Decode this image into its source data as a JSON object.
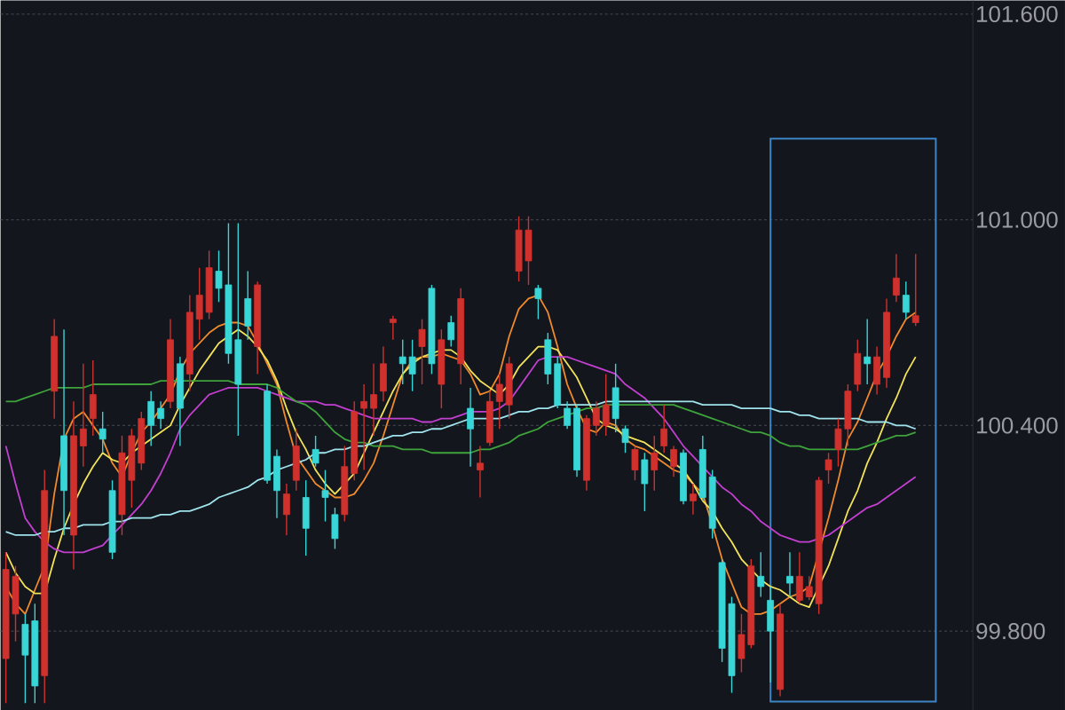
{
  "chart_data": {
    "type": "candlestick",
    "categories": [
      null,
      null,
      null,
      null,
      null,
      null,
      null,
      null,
      null,
      null,
      null,
      null,
      null,
      null,
      null,
      null,
      null,
      null,
      null,
      null,
      null,
      null,
      null,
      null,
      null,
      null,
      null,
      null,
      null,
      null,
      null,
      null,
      null,
      null,
      null,
      null,
      null,
      null,
      null,
      null,
      null,
      null,
      null,
      null,
      null,
      null,
      null,
      null,
      null,
      null,
      null,
      null,
      null,
      null,
      null,
      null,
      null,
      null,
      null,
      null,
      null,
      null,
      null,
      null,
      null,
      null,
      null,
      null,
      null,
      null,
      null,
      null,
      null,
      null,
      null,
      null,
      null,
      null,
      null,
      null,
      null,
      null,
      null,
      null,
      null,
      null,
      null,
      null,
      null,
      null,
      null,
      null,
      null,
      null,
      null
    ],
    "ohlc": [
      [
        99.72,
        100.03,
        99.59,
        99.98
      ],
      [
        99.85,
        99.99,
        99.77,
        99.96
      ],
      [
        99.82,
        99.85,
        99.59,
        99.73
      ],
      [
        99.83,
        99.88,
        99.59,
        99.64
      ],
      [
        99.67,
        100.27,
        99.59,
        100.21
      ],
      [
        100.5,
        100.71,
        100.42,
        100.66
      ],
      [
        100.37,
        100.68,
        100.08,
        100.21
      ],
      [
        100.08,
        100.47,
        99.98,
        100.37
      ],
      [
        100.34,
        100.58,
        100.28,
        100.39
      ],
      [
        100.42,
        100.59,
        100.37,
        100.49
      ],
      [
        100.39,
        100.44,
        100.32,
        100.36
      ],
      [
        100.21,
        100.24,
        100.01,
        100.03
      ],
      [
        100.14,
        100.37,
        100.08,
        100.32
      ],
      [
        100.24,
        100.39,
        100.16,
        100.37
      ],
      [
        100.29,
        100.44,
        100.27,
        100.42
      ],
      [
        100.47,
        100.5,
        100.34,
        100.4
      ],
      [
        100.45,
        100.47,
        100.39,
        100.42
      ],
      [
        100.47,
        100.71,
        100.45,
        100.65
      ],
      [
        100.58,
        100.6,
        100.34,
        100.45
      ],
      [
        100.55,
        100.78,
        100.5,
        100.73
      ],
      [
        100.71,
        100.86,
        100.65,
        100.78
      ],
      [
        100.73,
        100.91,
        100.71,
        100.86
      ],
      [
        100.85,
        100.91,
        100.76,
        100.8
      ],
      [
        100.81,
        100.99,
        100.58,
        100.61
      ],
      [
        100.65,
        100.99,
        100.37,
        100.52
      ],
      [
        100.77,
        100.85,
        100.65,
        100.69
      ],
      [
        100.63,
        100.82,
        100.55,
        100.81
      ],
      [
        100.5,
        100.52,
        100.23,
        100.24
      ],
      [
        100.31,
        100.33,
        100.13,
        100.21
      ],
      [
        100.14,
        100.23,
        100.08,
        100.2
      ],
      [
        100.24,
        100.39,
        100.21,
        100.34
      ],
      [
        100.19,
        100.24,
        100.02,
        100.1
      ],
      [
        100.33,
        100.37,
        100.28,
        100.29
      ],
      [
        100.21,
        100.27,
        100.12,
        100.19
      ],
      [
        100.14,
        100.16,
        100.04,
        100.07
      ],
      [
        100.14,
        100.34,
        100.12,
        100.28
      ],
      [
        100.26,
        100.47,
        100.24,
        100.44
      ],
      [
        100.45,
        100.52,
        100.27,
        100.47
      ],
      [
        100.45,
        100.58,
        100.37,
        100.49
      ],
      [
        100.5,
        100.63,
        100.47,
        100.58
      ],
      [
        100.7,
        100.72,
        100.65,
        100.71
      ],
      [
        100.6,
        100.65,
        100.52,
        100.58
      ],
      [
        100.6,
        100.65,
        100.5,
        100.55
      ],
      [
        100.63,
        100.71,
        100.52,
        100.68
      ],
      [
        100.8,
        100.81,
        100.55,
        100.58
      ],
      [
        100.52,
        100.68,
        100.45,
        100.65
      ],
      [
        100.7,
        100.72,
        100.63,
        100.65
      ],
      [
        100.58,
        100.8,
        100.52,
        100.77
      ],
      [
        100.45,
        100.51,
        100.28,
        100.39
      ],
      [
        100.27,
        100.34,
        100.19,
        100.29
      ],
      [
        100.35,
        100.5,
        100.34,
        100.47
      ],
      [
        100.47,
        100.55,
        100.39,
        100.52
      ],
      [
        100.46,
        100.6,
        100.42,
        100.58
      ],
      [
        100.85,
        101.01,
        100.82,
        100.97
      ],
      [
        100.88,
        101.01,
        100.81,
        100.97
      ],
      [
        100.8,
        100.81,
        100.71,
        100.77
      ],
      [
        100.65,
        100.67,
        100.52,
        100.55
      ],
      [
        100.58,
        100.6,
        100.45,
        100.46
      ],
      [
        100.45,
        100.47,
        100.39,
        100.4
      ],
      [
        100.45,
        100.46,
        100.25,
        100.27
      ],
      [
        100.24,
        100.43,
        100.21,
        100.42
      ],
      [
        100.4,
        100.47,
        100.37,
        100.45
      ],
      [
        100.4,
        100.55,
        100.37,
        100.46
      ],
      [
        100.51,
        100.58,
        100.38,
        100.42
      ],
      [
        100.39,
        100.4,
        100.32,
        100.35
      ],
      [
        100.27,
        100.34,
        100.24,
        100.33
      ],
      [
        100.3,
        100.32,
        100.15,
        100.23
      ],
      [
        100.27,
        100.37,
        100.21,
        100.32
      ],
      [
        100.34,
        100.46,
        100.32,
        100.39
      ],
      [
        100.28,
        100.34,
        100.25,
        100.33
      ],
      [
        100.32,
        100.33,
        100.17,
        100.18
      ],
      [
        100.18,
        100.23,
        100.14,
        100.2
      ],
      [
        100.33,
        100.37,
        100.18,
        100.19
      ],
      [
        100.25,
        100.27,
        100.07,
        100.1
      ],
      [
        100.0,
        100.01,
        99.71,
        99.75
      ],
      [
        99.88,
        99.9,
        99.62,
        99.67
      ],
      [
        99.72,
        99.85,
        99.68,
        99.79
      ],
      [
        99.76,
        100.01,
        99.75,
        99.99
      ],
      [
        99.96,
        100.03,
        99.9,
        99.93
      ],
      [
        99.89,
        99.93,
        99.65,
        99.8
      ],
      [
        99.63,
        99.88,
        99.61,
        99.85
      ],
      [
        99.96,
        100.03,
        99.9,
        99.94
      ],
      [
        99.89,
        100.03,
        99.88,
        99.96
      ],
      [
        99.9,
        99.96,
        99.89,
        99.93
      ],
      [
        99.88,
        100.25,
        99.85,
        100.24
      ],
      [
        100.27,
        100.32,
        100.23,
        100.3
      ],
      [
        100.33,
        100.42,
        100.28,
        100.39
      ],
      [
        100.39,
        100.52,
        100.34,
        100.5
      ],
      [
        100.52,
        100.65,
        100.5,
        100.61
      ],
      [
        100.6,
        100.71,
        100.52,
        100.58
      ],
      [
        100.52,
        100.63,
        100.49,
        100.6
      ],
      [
        100.54,
        100.77,
        100.51,
        100.73
      ],
      [
        100.78,
        100.9,
        100.76,
        100.83
      ],
      [
        100.78,
        100.82,
        100.71,
        100.73
      ],
      [
        100.7,
        100.9,
        100.69,
        100.72
      ]
    ],
    "colors": [
      "#d0312d",
      "#d0312d",
      "#38d6d6",
      "#38d6d6",
      "#d0312d",
      "#d0312d",
      "#38d6d6",
      "#d0312d",
      "#d0312d",
      "#d0312d",
      "#38d6d6",
      "#38d6d6",
      "#d0312d",
      "#d0312d",
      "#d0312d",
      "#38d6d6",
      "#38d6d6",
      "#d0312d",
      "#38d6d6",
      "#d0312d",
      "#d0312d",
      "#d0312d",
      "#38d6d6",
      "#38d6d6",
      "#38d6d6",
      "#38d6d6",
      "#d0312d",
      "#38d6d6",
      "#38d6d6",
      "#d0312d",
      "#d0312d",
      "#38d6d6",
      "#38d6d6",
      "#38d6d6",
      "#38d6d6",
      "#d0312d",
      "#d0312d",
      "#d0312d",
      "#d0312d",
      "#d0312d",
      "#d0312d",
      "#38d6d6",
      "#38d6d6",
      "#d0312d",
      "#38d6d6",
      "#d0312d",
      "#38d6d6",
      "#d0312d",
      "#38d6d6",
      "#d0312d",
      "#d0312d",
      "#d0312d",
      "#d0312d",
      "#d0312d",
      "#d0312d",
      "#38d6d6",
      "#38d6d6",
      "#38d6d6",
      "#38d6d6",
      "#38d6d6",
      "#d0312d",
      "#d0312d",
      "#d0312d",
      "#38d6d6",
      "#38d6d6",
      "#d0312d",
      "#38d6d6",
      "#d0312d",
      "#d0312d",
      "#d0312d",
      "#38d6d6",
      "#d0312d",
      "#38d6d6",
      "#38d6d6",
      "#38d6d6",
      "#38d6d6",
      "#d0312d",
      "#d0312d",
      "#38d6d6",
      "#38d6d6",
      "#d0312d",
      "#38d6d6",
      "#d0312d",
      "#d0312d",
      "#d0312d",
      "#d0312d",
      "#d0312d",
      "#d0312d",
      "#d0312d",
      "#38d6d6",
      "#d0312d",
      "#d0312d",
      "#d0312d",
      "#38d6d6",
      "#d0312d"
    ],
    "series": [
      {
        "type": "line",
        "color": "#f08a2c",
        "values": [
          99.93,
          99.88,
          99.85,
          99.92,
          99.99,
          100.2,
          100.36,
          100.42,
          100.44,
          100.4,
          100.36,
          100.29,
          100.25,
          100.32,
          100.38,
          100.41,
          100.45,
          100.49,
          100.56,
          100.61,
          100.64,
          100.67,
          100.69,
          100.7,
          100.7,
          100.69,
          100.64,
          100.58,
          100.52,
          100.41,
          100.31,
          100.27,
          100.23,
          100.21,
          100.19,
          100.19,
          100.2,
          100.24,
          100.29,
          100.37,
          100.46,
          100.55,
          100.59,
          100.6,
          100.6,
          100.61,
          100.6,
          100.59,
          100.55,
          100.49,
          100.5,
          100.55,
          100.66,
          100.74,
          100.77,
          100.78,
          100.73,
          100.63,
          100.52,
          100.45,
          100.39,
          100.38,
          100.41,
          100.4,
          100.36,
          100.34,
          100.33,
          100.31,
          100.29,
          100.27,
          100.26,
          100.23,
          100.2,
          100.11,
          100.01,
          99.94,
          99.87,
          99.85,
          99.85,
          99.86,
          99.88,
          99.9,
          99.91,
          99.93,
          null,
          100.13,
          100.24,
          100.36,
          100.41,
          100.48,
          100.55,
          100.6,
          100.66,
          100.71,
          100.73
        ]
      },
      {
        "type": "line",
        "color": "#f2e35a",
        "values": [
          100.03,
          99.97,
          99.93,
          99.91,
          99.91,
          100.01,
          100.1,
          100.17,
          100.23,
          100.28,
          100.32,
          100.3,
          100.29,
          100.32,
          100.34,
          100.36,
          100.38,
          100.4,
          100.46,
          100.51,
          100.56,
          100.6,
          100.64,
          100.66,
          100.68,
          100.66,
          100.63,
          100.59,
          100.53,
          100.45,
          100.38,
          100.33,
          100.27,
          100.23,
          100.2,
          100.23,
          100.26,
          100.32,
          100.38,
          100.44,
          100.5,
          100.55,
          100.58,
          100.6,
          100.61,
          100.62,
          100.62,
          100.6,
          100.56,
          100.53,
          100.51,
          100.49,
          100.52,
          100.57,
          100.6,
          100.63,
          100.63,
          100.62,
          100.58,
          100.54,
          100.48,
          100.42,
          100.4,
          100.39,
          100.37,
          100.36,
          100.35,
          100.33,
          100.31,
          100.29,
          100.27,
          100.23,
          100.18,
          100.15,
          100.1,
          100.06,
          100.01,
          99.98,
          99.95,
          99.93,
          99.92,
          99.9,
          99.88,
          99.87,
          99.93,
          99.99,
          100.07,
          100.15,
          100.21,
          100.29,
          100.35,
          100.42,
          100.48,
          100.55,
          100.6
        ]
      },
      {
        "type": "line",
        "color": "#c23fd0",
        "values": [
          100.34,
          100.23,
          100.13,
          100.09,
          100.06,
          100.04,
          100.03,
          100.03,
          100.03,
          100.04,
          100.05,
          100.08,
          100.11,
          100.14,
          100.17,
          100.21,
          100.26,
          100.32,
          100.39,
          100.43,
          100.46,
          100.49,
          100.5,
          100.51,
          100.51,
          100.51,
          100.51,
          100.5,
          100.49,
          100.48,
          100.47,
          100.47,
          100.47,
          100.46,
          100.46,
          100.45,
          100.44,
          100.43,
          100.42,
          100.42,
          100.42,
          100.42,
          100.42,
          100.41,
          100.41,
          100.42,
          100.42,
          100.43,
          100.44,
          100.44,
          100.44,
          100.45,
          100.47,
          100.51,
          100.55,
          100.59,
          100.6,
          100.6,
          100.6,
          100.59,
          100.58,
          100.57,
          100.56,
          100.55,
          100.52,
          100.5,
          100.48,
          100.45,
          100.42,
          100.38,
          100.34,
          100.31,
          100.28,
          100.25,
          100.22,
          100.2,
          100.17,
          100.15,
          100.12,
          100.1,
          100.08,
          100.07,
          100.06,
          100.06,
          100.07,
          100.08,
          100.1,
          100.12,
          100.14,
          100.16,
          100.17,
          100.19,
          100.21,
          100.23,
          100.25
        ]
      },
      {
        "type": "line",
        "color": "#3da33a",
        "values": [
          100.47,
          100.47,
          100.48,
          100.49,
          100.5,
          100.51,
          100.51,
          100.51,
          100.51,
          100.52,
          100.52,
          100.52,
          100.52,
          100.52,
          100.52,
          100.52,
          100.53,
          100.53,
          100.53,
          100.53,
          100.53,
          100.53,
          100.53,
          100.53,
          100.52,
          100.52,
          100.52,
          100.52,
          100.51,
          100.49,
          100.47,
          100.46,
          100.44,
          100.41,
          100.38,
          100.36,
          100.35,
          100.35,
          100.34,
          100.34,
          100.34,
          100.33,
          100.33,
          100.33,
          100.32,
          100.32,
          100.32,
          100.32,
          100.32,
          100.33,
          100.33,
          100.34,
          100.35,
          100.37,
          100.38,
          100.39,
          100.41,
          100.42,
          100.43,
          100.44,
          100.45,
          100.45,
          100.46,
          100.46,
          100.46,
          100.46,
          100.46,
          100.46,
          100.46,
          100.46,
          100.45,
          100.44,
          100.43,
          100.42,
          100.41,
          100.4,
          100.39,
          100.38,
          100.38,
          100.37,
          100.35,
          100.34,
          100.34,
          100.33,
          100.33,
          100.33,
          100.33,
          100.33,
          100.33,
          100.34,
          100.35,
          100.36,
          100.37,
          100.37,
          100.38
        ]
      },
      {
        "type": "line",
        "color": "#9fe3ec",
        "values": [
          100.09,
          100.08,
          100.08,
          100.08,
          100.09,
          100.09,
          100.1,
          100.1,
          100.11,
          100.11,
          100.11,
          100.12,
          100.12,
          100.13,
          100.13,
          100.13,
          100.14,
          100.14,
          100.15,
          100.15,
          100.16,
          100.17,
          100.19,
          100.2,
          100.21,
          100.22,
          100.24,
          100.25,
          100.27,
          100.28,
          100.29,
          100.3,
          100.32,
          100.32,
          100.33,
          100.33,
          100.34,
          100.34,
          100.35,
          100.36,
          100.37,
          100.37,
          100.38,
          100.38,
          100.39,
          100.39,
          100.4,
          100.41,
          100.42,
          100.42,
          100.42,
          100.42,
          100.43,
          100.44,
          100.44,
          100.45,
          100.45,
          100.46,
          100.46,
          100.46,
          100.46,
          100.46,
          100.47,
          100.47,
          100.47,
          100.47,
          100.47,
          100.47,
          100.47,
          100.47,
          100.47,
          100.47,
          100.46,
          100.46,
          100.46,
          100.46,
          100.45,
          100.45,
          100.45,
          100.45,
          100.44,
          100.44,
          100.43,
          100.43,
          100.42,
          100.42,
          100.42,
          100.42,
          100.42,
          100.41,
          100.41,
          100.41,
          100.4,
          100.4,
          100.39
        ]
      }
    ],
    "ylim": [
      99.57,
      101.64
    ],
    "yticks": [
      {
        "value": 99.8,
        "label": "99.800"
      },
      {
        "value": 100.4,
        "label": "100.400"
      },
      {
        "value": 101.0,
        "label": "101.000"
      },
      {
        "value": 101.6,
        "label": "101.600"
      }
    ],
    "grid": "y",
    "tick_labels": "y"
  }
}
